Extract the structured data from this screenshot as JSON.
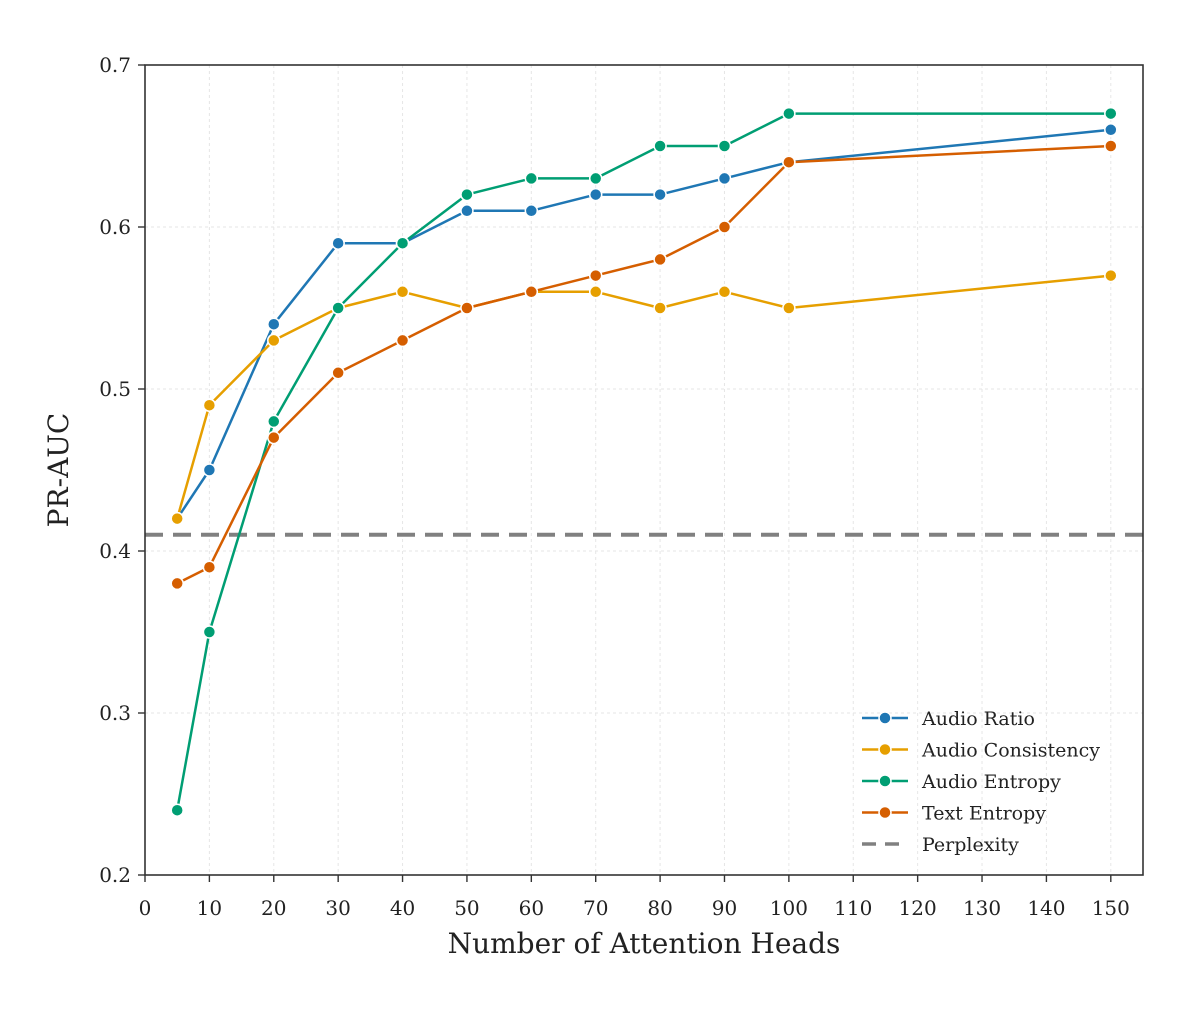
{
  "chart_data": {
    "type": "line",
    "title": "",
    "xlabel": "Number of Attention Heads",
    "ylabel": "PR-AUC",
    "x": [
      5,
      10,
      20,
      30,
      40,
      50,
      60,
      70,
      80,
      90,
      100,
      150
    ],
    "xlim": [
      0,
      155
    ],
    "ylim": [
      0.2,
      0.7
    ],
    "xticks": [
      0,
      10,
      20,
      30,
      40,
      50,
      60,
      70,
      80,
      90,
      100,
      110,
      120,
      130,
      140,
      150
    ],
    "yticks": [
      0.2,
      0.3,
      0.4,
      0.5,
      0.6,
      0.7
    ],
    "grid": true,
    "legend_position": "bottom-right",
    "series": [
      {
        "name": "Audio Ratio",
        "color": "#1f77b4",
        "values": [
          0.42,
          0.45,
          0.54,
          0.59,
          0.59,
          0.61,
          0.61,
          0.62,
          0.62,
          0.63,
          0.64,
          0.66
        ]
      },
      {
        "name": "Audio Consistency",
        "color": "#e69f00",
        "values": [
          0.42,
          0.49,
          0.53,
          0.55,
          0.56,
          0.55,
          0.56,
          0.56,
          0.55,
          0.56,
          0.55,
          0.57
        ]
      },
      {
        "name": "Audio Entropy",
        "color": "#009e73",
        "values": [
          0.24,
          0.35,
          0.48,
          0.55,
          0.59,
          0.62,
          0.63,
          0.63,
          0.65,
          0.65,
          0.67,
          0.67
        ]
      },
      {
        "name": "Text Entropy",
        "color": "#d55e00",
        "values": [
          0.38,
          0.39,
          0.47,
          0.51,
          0.53,
          0.55,
          0.56,
          0.57,
          0.58,
          0.6,
          0.64,
          0.65
        ]
      }
    ],
    "baseline": {
      "name": "Perplexity",
      "value": 0.41,
      "color": "#808080",
      "style": "dashed"
    }
  }
}
